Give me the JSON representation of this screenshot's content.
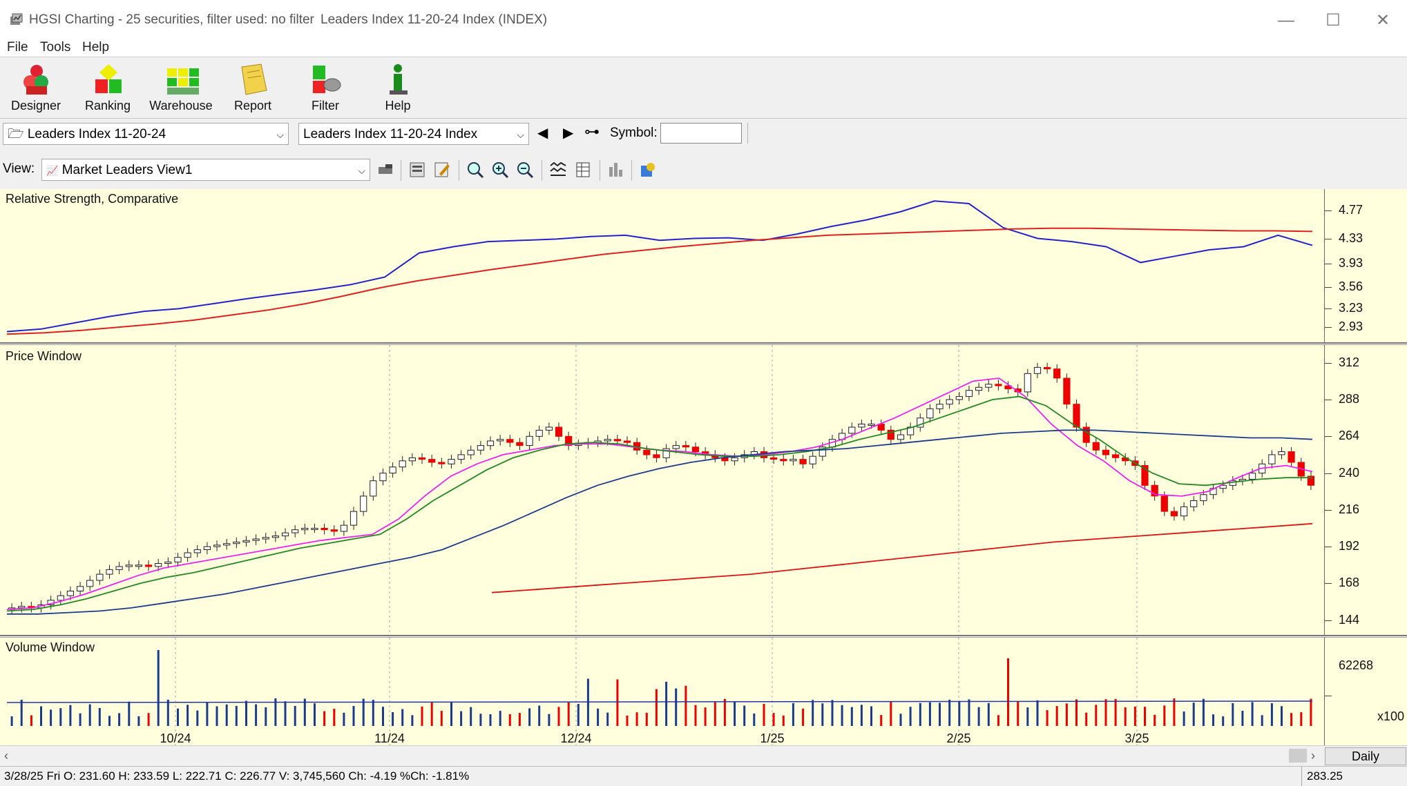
{
  "window": {
    "title": "HGSI Charting - 25 securities, filter used: no filter",
    "subtitle": "Leaders Index 11-20-24 Index (INDEX)",
    "minimize": "—",
    "maximize": "☐",
    "close": "✕"
  },
  "menu": [
    "File",
    "Tools",
    "Help"
  ],
  "toolbar": [
    {
      "label": "Designer",
      "icon": "designer-icon"
    },
    {
      "label": "Ranking",
      "icon": "ranking-icon"
    },
    {
      "label": "Warehouse",
      "icon": "warehouse-icon"
    },
    {
      "label": "Report",
      "icon": "report-icon"
    },
    {
      "label": "Filter",
      "icon": "filter-icon"
    },
    {
      "label": "Help",
      "icon": "help-icon"
    }
  ],
  "selectors": {
    "folder": "Leaders Index 11-20-24",
    "security": "Leaders Index 11-20-24 Index",
    "symbol_label": "Symbol:",
    "symbol_value": ""
  },
  "view": {
    "label": "View:",
    "value": "Market Leaders View1"
  },
  "colors": {
    "panel_bg": "#ffffdd",
    "rs_line": "#2222cc",
    "rs_ma": "#e02020",
    "up_candle": "#ffffff",
    "down_candle": "#ee0000",
    "ma_fast": "#ee22ee",
    "ma_mid": "#228822",
    "ma_slow": "#1a3a8a",
    "ma_long": "#dd1111",
    "vol_up": "#1a3a8a",
    "vol_down": "#ee0000"
  },
  "panels": {
    "rs_title": "Relative Strength, Comparative",
    "price_title": "Price Window",
    "volume_title": "Volume Window",
    "volume_multiplier": "x100"
  },
  "chart_data": [
    {
      "type": "line",
      "title": "Relative Strength, Comparative",
      "ylim": [
        2.8,
        5.0
      ],
      "y_ticks": [
        "4.77",
        "4.33",
        "3.93",
        "3.56",
        "3.23",
        "2.93"
      ],
      "series": [
        {
          "values": [
            2.86,
            2.9,
            3.0,
            3.1,
            3.18,
            3.22,
            3.3,
            3.38,
            3.45,
            3.52,
            3.6,
            3.72,
            4.1,
            4.2,
            4.28,
            4.3,
            4.32,
            4.36,
            4.38,
            4.3,
            4.33,
            4.34,
            4.3,
            4.4,
            4.52,
            4.62,
            4.75,
            4.92,
            4.88,
            4.5,
            4.33,
            4.28,
            4.2,
            3.95,
            4.05,
            4.15,
            4.2,
            4.38,
            4.22
          ]
        },
        {
          "values": [
            2.82,
            2.84,
            2.88,
            2.93,
            2.98,
            3.04,
            3.12,
            3.2,
            3.3,
            3.42,
            3.55,
            3.66,
            3.75,
            3.84,
            3.92,
            4.0,
            4.08,
            4.14,
            4.2,
            4.25,
            4.3,
            4.34,
            4.38,
            4.4,
            4.42,
            4.44,
            4.46,
            4.48,
            4.49,
            4.49,
            4.48,
            4.47,
            4.46,
            4.45,
            4.45,
            4.44
          ]
        }
      ]
    },
    {
      "type": "line",
      "title": "Price Window",
      "x_ticks": [
        "10/24",
        "11/24",
        "12/24",
        "1/25",
        "2/25",
        "3/25"
      ],
      "ylim": [
        138,
        320
      ],
      "y_ticks": [
        "312",
        "288",
        "264",
        "240",
        "216",
        "192",
        "168",
        "144"
      ],
      "candles_close": [
        152,
        153,
        152,
        154,
        157,
        160,
        163,
        166,
        170,
        174,
        177,
        179,
        180,
        180,
        179,
        181,
        182,
        185,
        188,
        190,
        192,
        193,
        194,
        195,
        196,
        197,
        198,
        199,
        201,
        203,
        204,
        204,
        203,
        202,
        206,
        215,
        225,
        235,
        240,
        244,
        248,
        250,
        249,
        247,
        246,
        249,
        252,
        255,
        258,
        261,
        262,
        260,
        258,
        264,
        268,
        270,
        264,
        258,
        259,
        260,
        261,
        262,
        261,
        260,
        255,
        252,
        250,
        256,
        258,
        257,
        254,
        252,
        250,
        248,
        250,
        252,
        254,
        250,
        249,
        248,
        249,
        246,
        251,
        257,
        262,
        266,
        270,
        272,
        272,
        268,
        262,
        265,
        270,
        276,
        282,
        285,
        288,
        290,
        294,
        296,
        298,
        297,
        295,
        293,
        305,
        309,
        308,
        302,
        285,
        270,
        260,
        255,
        252,
        250,
        248,
        245,
        232,
        225,
        215,
        212,
        218,
        222,
        226,
        230,
        232,
        235,
        236,
        240,
        246,
        252,
        254,
        247,
        238,
        232
      ],
      "series": [
        {
          "name": "",
          "values": [
            151,
            152,
            156,
            161,
            167,
            173,
            178,
            181,
            184,
            187,
            190,
            193,
            196,
            198,
            200,
            210,
            225,
            238,
            246,
            252,
            255,
            258,
            259,
            259,
            257,
            255,
            254,
            252,
            251,
            252,
            254,
            257,
            262,
            269,
            276,
            284,
            292,
            300,
            302,
            290,
            272,
            258,
            248,
            235,
            226,
            225,
            228,
            236,
            243,
            245,
            241
          ]
        },
        {
          "name": "",
          "values": [
            150,
            151,
            154,
            158,
            163,
            168,
            172,
            175,
            179,
            183,
            187,
            191,
            194,
            197,
            200,
            210,
            222,
            232,
            242,
            250,
            255,
            259,
            260,
            259,
            256,
            254,
            252,
            251,
            251,
            252,
            254,
            257,
            262,
            266,
            270,
            276,
            282,
            288,
            290,
            284,
            272,
            262,
            250,
            240,
            233,
            232,
            234,
            236,
            237,
            237
          ]
        },
        {
          "name": "",
          "values": [
            148,
            148,
            149,
            150,
            152,
            155,
            158,
            161,
            165,
            169,
            173,
            177,
            181,
            185,
            190,
            198,
            206,
            215,
            224,
            232,
            238,
            243,
            247,
            250,
            252,
            254,
            255,
            256,
            258,
            260,
            262,
            264,
            266,
            267,
            268,
            268,
            267,
            266,
            265,
            264,
            263,
            263,
            262
          ]
        },
        {
          "name": "",
          "values": [
            162,
            164,
            166,
            168,
            170,
            172,
            174,
            177,
            180,
            183,
            186,
            189,
            192,
            195,
            197,
            199,
            201,
            203,
            205,
            207
          ]
        }
      ]
    },
    {
      "type": "bar",
      "title": "Volume Window",
      "y_ticks": [
        "62268"
      ],
      "unit": "x100"
    }
  ],
  "status": {
    "bar": "3/28/25 Fri O: 231.60 H: 233.59 L: 222.71 C: 226.77 V: 3,745,560 Ch: -4.19 %Ch: -1.81%",
    "price": "283.25",
    "period": "Daily"
  }
}
